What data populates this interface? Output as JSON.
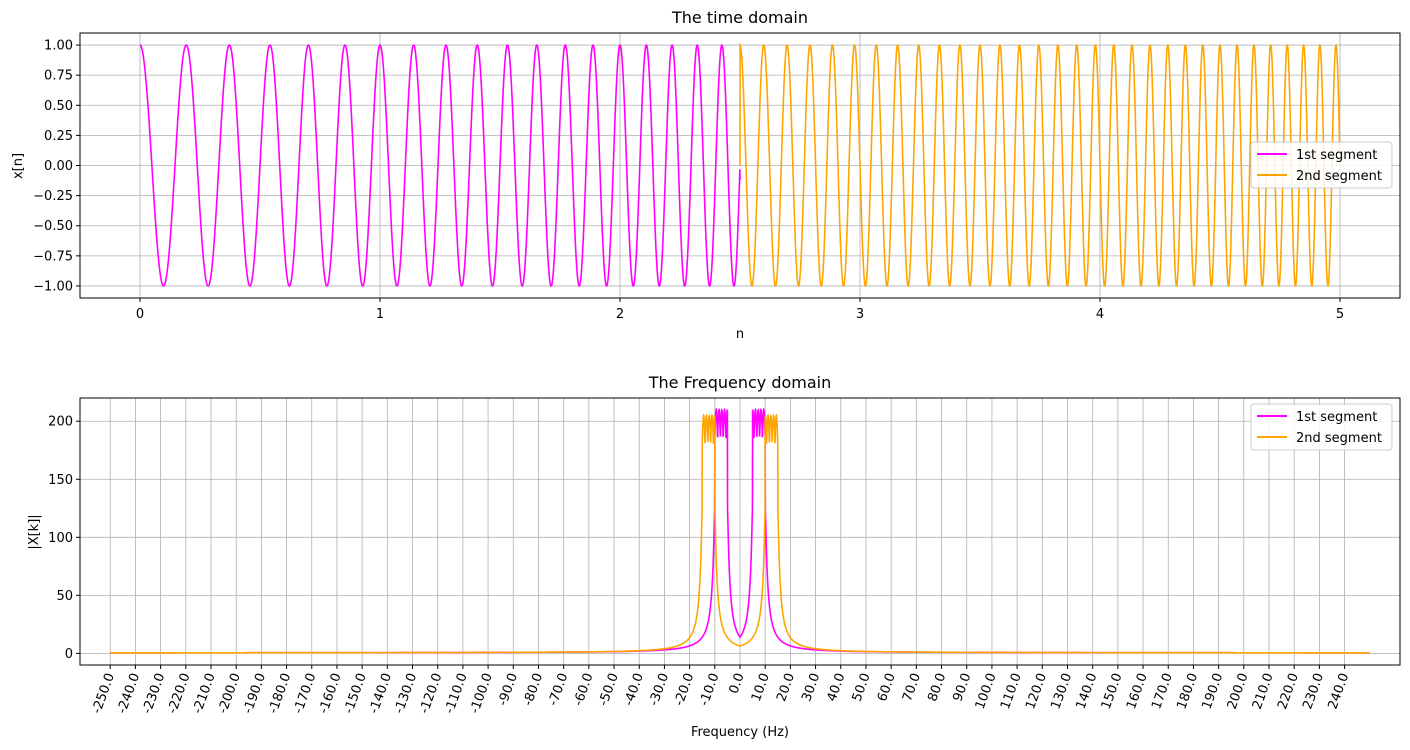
{
  "chart_data": [
    {
      "type": "line",
      "title": "The time domain",
      "xlabel": "n",
      "ylabel": "x[n]",
      "xlim": [
        -0.25,
        5.25
      ],
      "ylim": [
        -1.1,
        1.1
      ],
      "xticks": [
        0,
        1,
        2,
        3,
        4,
        5
      ],
      "xtick_labels": [
        "0",
        "1",
        "2",
        "3",
        "4",
        "5"
      ],
      "yticks": [
        -1.0,
        -0.75,
        -0.5,
        -0.25,
        0.0,
        0.25,
        0.5,
        0.75,
        1.0
      ],
      "ytick_labels": [
        "−1.00",
        "−0.75",
        "−0.50",
        "−0.25",
        "0.00",
        "0.25",
        "0.50",
        "0.75",
        "1.00"
      ],
      "grid": true,
      "legend_position": "center-right",
      "series": [
        {
          "name": "1st segment",
          "color": "#ff00ff",
          "x_range": [
            0,
            2.5
          ],
          "signal": "cos",
          "freq_start_hz": 5.0,
          "freq_end_hz": 10.0,
          "y_at_end": -0.12
        },
        {
          "name": "2nd segment",
          "color": "#ffa500",
          "x_range": [
            2.5,
            5.0
          ],
          "signal": "cos",
          "freq_start_hz": 10.0,
          "freq_end_hz": 15.0,
          "y_at_start": 0.0
        }
      ]
    },
    {
      "type": "line",
      "title": "The Frequency domain",
      "xlabel": "Frequency (Hz)",
      "ylabel": "|X[k]|",
      "xlim": [
        -262,
        262
      ],
      "ylim": [
        -10,
        220
      ],
      "xticks_start": -250,
      "xticks_step": 10,
      "xticks_count": 50,
      "xtick_labels": [
        "-250.0",
        "-240.0",
        "-230.0",
        "-220.0",
        "-210.0",
        "-200.0",
        "-190.0",
        "-180.0",
        "-170.0",
        "-160.0",
        "-150.0",
        "-140.0",
        "-130.0",
        "-120.0",
        "-110.0",
        "-100.0",
        "-90.0",
        "-80.0",
        "-70.0",
        "-60.0",
        "-50.0",
        "-40.0",
        "-30.0",
        "-20.0",
        "-10.0",
        "0.0",
        "10.0",
        "20.0",
        "30.0",
        "40.0",
        "50.0",
        "60.0",
        "70.0",
        "80.0",
        "90.0",
        "100.0",
        "110.0",
        "120.0",
        "130.0",
        "140.0",
        "150.0",
        "160.0",
        "170.0",
        "180.0",
        "190.0",
        "200.0",
        "210.0",
        "220.0",
        "230.0",
        "240.0"
      ],
      "yticks": [
        0,
        50,
        100,
        150,
        200
      ],
      "ytick_labels": [
        "0",
        "50",
        "100",
        "150",
        "200"
      ],
      "grid": true,
      "legend_position": "upper-right",
      "series": [
        {
          "name": "1st segment",
          "color": "#ff00ff",
          "x_range": [
            -250,
            250
          ],
          "band_hz": [
            5,
            10
          ],
          "peak": 210,
          "plateau": 185,
          "baseline": 0
        },
        {
          "name": "2nd segment",
          "color": "#ffa500",
          "x_range": [
            -250,
            250
          ],
          "band_hz": [
            10,
            15
          ],
          "peak": 205,
          "plateau": 180,
          "baseline": 0
        }
      ]
    }
  ]
}
